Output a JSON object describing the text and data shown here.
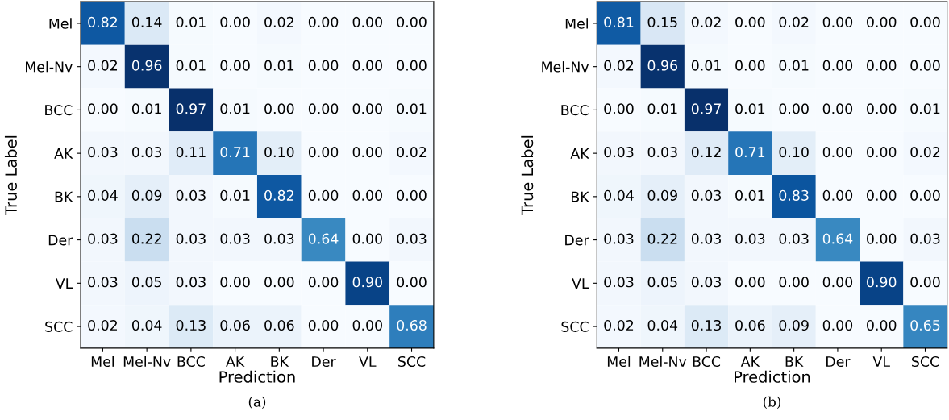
{
  "chart_data": [
    {
      "type": "heatmap",
      "xlabel": "Prediction",
      "ylabel": "True Label",
      "annotations": [
        "(a)"
      ],
      "categories": [
        "Mel",
        "Mel-Nv",
        "BCC",
        "AK",
        "BK",
        "Der",
        "VL",
        "SCC"
      ],
      "y_categories": [
        "Mel",
        "Mel-Nv",
        "BCC",
        "AK",
        "BK",
        "Der",
        "VL",
        "SCC"
      ],
      "cells": [
        [
          0.82,
          0.14,
          0.01,
          0.0,
          0.02,
          0.0,
          0.0,
          0.0
        ],
        [
          0.02,
          0.96,
          0.01,
          0.0,
          0.01,
          0.0,
          0.0,
          0.0
        ],
        [
          0.0,
          0.01,
          0.97,
          0.01,
          0.0,
          0.0,
          0.0,
          0.01
        ],
        [
          0.03,
          0.03,
          0.11,
          0.71,
          0.1,
          0.0,
          0.0,
          0.02
        ],
        [
          0.04,
          0.09,
          0.03,
          0.01,
          0.82,
          0.0,
          0.0,
          0.0
        ],
        [
          0.03,
          0.22,
          0.03,
          0.03,
          0.03,
          0.64,
          0.0,
          0.03
        ],
        [
          0.03,
          0.05,
          0.03,
          0.0,
          0.0,
          0.0,
          0.9,
          0.0
        ],
        [
          0.02,
          0.04,
          0.13,
          0.06,
          0.06,
          0.0,
          0.0,
          0.68
        ]
      ],
      "cell_labels": [
        [
          "0.82",
          "0.14",
          "0.01",
          "0.00",
          "0.02",
          "0.00",
          "0.00",
          "0.00"
        ],
        [
          "0.02",
          "0.96",
          "0.01",
          "0.00",
          "0.01",
          "0.00",
          "0.00",
          "0.00"
        ],
        [
          "0.00",
          "0.01",
          "0.97",
          "0.01",
          "0.00",
          "0.00",
          "0.00",
          "0.01"
        ],
        [
          "0.03",
          "0.03",
          "0.11",
          "0.71",
          "0.10",
          "0.00",
          "0.00",
          "0.02"
        ],
        [
          "0.04",
          "0.09",
          "0.03",
          "0.01",
          "0.82",
          "0.00",
          "0.00",
          "0.00"
        ],
        [
          "0.03",
          "0.22",
          "0.03",
          "0.03",
          "0.03",
          "0.64",
          "0.00",
          "0.03"
        ],
        [
          "0.03",
          "0.05",
          "0.03",
          "0.00",
          "0.00",
          "0.00",
          "0.90",
          "0.00"
        ],
        [
          "0.02",
          "0.04",
          "0.13",
          "0.06",
          "0.06",
          "0.00",
          "0.00",
          "0.68"
        ]
      ]
    },
    {
      "type": "heatmap",
      "xlabel": "Prediction",
      "ylabel": "True Label",
      "annotations": [
        "(b)"
      ],
      "categories": [
        "Mel",
        "Mel-Nv",
        "BCC",
        "AK",
        "BK",
        "Der",
        "VL",
        "SCC"
      ],
      "y_categories": [
        "Mel",
        "Mel-Nv",
        "BCC",
        "AK",
        "BK",
        "Der",
        "VL",
        "SCC"
      ],
      "cells": [
        [
          0.81,
          0.15,
          0.02,
          0.0,
          0.02,
          0.0,
          0.0,
          0.0
        ],
        [
          0.02,
          0.96,
          0.01,
          0.0,
          0.01,
          0.0,
          0.0,
          0.0
        ],
        [
          0.0,
          0.01,
          0.97,
          0.01,
          0.0,
          0.0,
          0.0,
          0.01
        ],
        [
          0.03,
          0.03,
          0.12,
          0.71,
          0.1,
          0.0,
          0.0,
          0.02
        ],
        [
          0.04,
          0.09,
          0.03,
          0.01,
          0.83,
          0.0,
          0.0,
          0.0
        ],
        [
          0.03,
          0.22,
          0.03,
          0.03,
          0.03,
          0.64,
          0.0,
          0.03
        ],
        [
          0.03,
          0.05,
          0.03,
          0.0,
          0.0,
          0.0,
          0.9,
          0.0
        ],
        [
          0.02,
          0.04,
          0.13,
          0.06,
          0.09,
          0.0,
          0.0,
          0.65
        ]
      ],
      "cell_labels": [
        [
          "0.81",
          "0.15",
          "0.02",
          "0.00",
          "0.02",
          "0.00",
          "0.00",
          "0.00"
        ],
        [
          "0.02",
          "0.96",
          "0.01",
          "0.00",
          "0.01",
          "0.00",
          "0.00",
          "0.00"
        ],
        [
          "0.00",
          "0.01",
          "0.97",
          "0.01",
          "0.00",
          "0.00",
          "0.00",
          "0.01"
        ],
        [
          "0.03",
          "0.03",
          "0.12",
          "0.71",
          "0.10",
          "0.00",
          "0.00",
          "0.02"
        ],
        [
          "0.04",
          "0.09",
          "0.03",
          "0.01",
          "0.83",
          "0.00",
          "0.00",
          "0.00"
        ],
        [
          "0.03",
          "0.22",
          "0.03",
          "0.03",
          "0.03",
          "0.64",
          "0.00",
          "0.03"
        ],
        [
          "0.03",
          "0.05",
          "0.03",
          "0.00",
          "0.00",
          "0.00",
          "0.90",
          "0.00"
        ],
        [
          "0.02",
          "0.04",
          "0.13",
          "0.06",
          "0.09",
          "0.00",
          "0.00",
          "0.65"
        ]
      ]
    }
  ]
}
